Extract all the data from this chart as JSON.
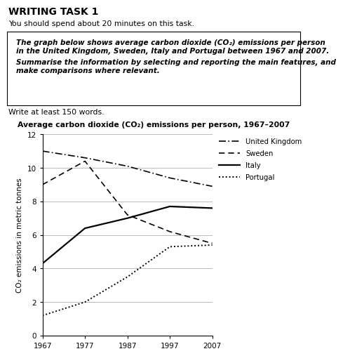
{
  "title": "Average carbon dioxide (CO₂) emissions per person, 1967–2007",
  "header_title": "WRITING TASK 1",
  "header_sub": "You should spend about 20 minutes on this task.",
  "box_line1": "The graph below shows average carbon dioxide (CO₂) emissions per person",
  "box_line2": "in the United Kingdom, Sweden, Italy and Portugal between 1967 and 2007.",
  "box_line3": "Summarise the information by selecting and reporting the main features, and",
  "box_line4": "make comparisons where relevant.",
  "footer": "Write at least 150 words.",
  "years": [
    1967,
    1977,
    1987,
    1997,
    2007
  ],
  "uk": [
    11.0,
    10.6,
    10.1,
    9.4,
    8.9
  ],
  "sweden": [
    9.0,
    10.4,
    7.2,
    6.2,
    5.5
  ],
  "italy": [
    4.3,
    6.4,
    7.0,
    7.7,
    7.6
  ],
  "portugal": [
    1.2,
    2.0,
    3.5,
    5.3,
    5.4
  ],
  "xlim": [
    1967,
    2007
  ],
  "ylim": [
    0,
    12
  ],
  "yticks": [
    0,
    2,
    4,
    6,
    8,
    10,
    12
  ],
  "xticks": [
    1967,
    1977,
    1987,
    1997,
    2007
  ],
  "ylabel": "CO₂ emissions in metric tonnes",
  "bg_color": "#ffffff",
  "grid_color": "#b0b0b0"
}
